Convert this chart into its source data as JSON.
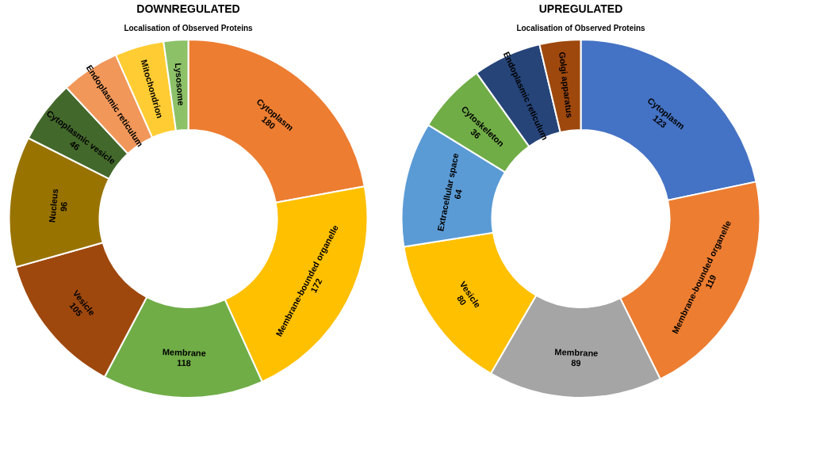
{
  "chart_data": [
    {
      "type": "donut",
      "title": "DOWNREGULATED",
      "subtitle": "Localisation of Observed Proteins",
      "categories": [
        "Cytoplasm",
        "Membrane-bounded organelle",
        "Membrane",
        "Vesicle",
        "Nucleus",
        "Cytoplasmic vesicle",
        "Endoplasmic reticulum",
        "Mitochondrion",
        "Lysosome"
      ],
      "values": [
        180,
        172,
        118,
        105,
        96,
        46,
        43,
        36,
        18
      ],
      "value_labels": [
        "180",
        "172",
        "118",
        "105",
        "96",
        "46",
        null,
        null,
        null
      ],
      "colors": [
        "#ed7d31",
        "#ffc000",
        "#70ad47",
        "#9e480e",
        "#997300",
        "#43682b",
        "#f1975a",
        "#ffcd33",
        "#8cc168"
      ],
      "legend": false
    },
    {
      "type": "donut",
      "title": "UPREGULATED",
      "subtitle": "Localisation of Observed Proteins",
      "categories": [
        "Cytoplasm",
        "Membrane-bounded organelle",
        "Membrane",
        "Vesicle",
        "Extracellular space",
        "Cytoskeleton",
        "Endoplasmic reticulum",
        "Golgi apparatus"
      ],
      "values": [
        123,
        119,
        89,
        80,
        64,
        36,
        35,
        21
      ],
      "value_labels": [
        "123",
        "119",
        "89",
        "80",
        "64",
        "36",
        null,
        null
      ],
      "colors": [
        "#4472c4",
        "#ed7d31",
        "#a5a5a5",
        "#ffc000",
        "#5b9bd5",
        "#70ad47",
        "#264478",
        "#9e480e"
      ],
      "legend": false
    }
  ]
}
